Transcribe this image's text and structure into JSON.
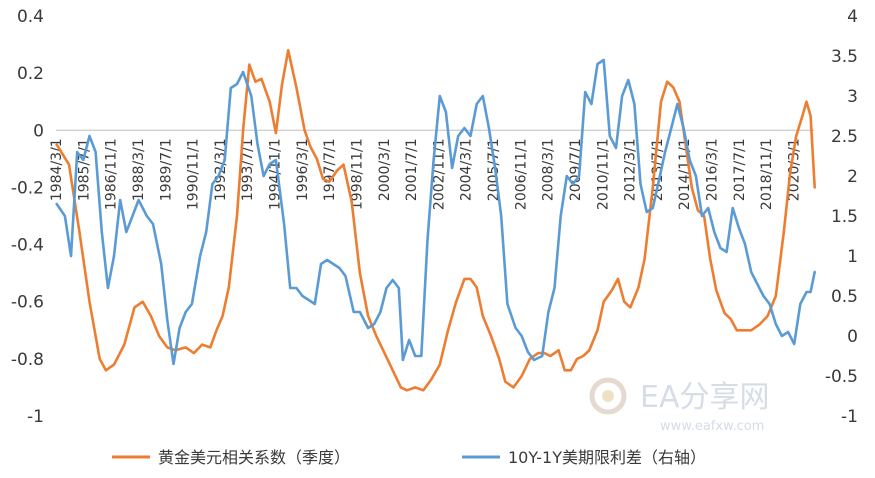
{
  "chart_data": {
    "type": "line",
    "title": "",
    "xlabel": "",
    "ylabel": "",
    "y_left": {
      "lim": [
        -1,
        0.4
      ],
      "ticks": [
        "0.4",
        "0.2",
        "0",
        "-0.2",
        "-0.4",
        "-0.6",
        "-0.8",
        "-1"
      ]
    },
    "y_right": {
      "lim": [
        -1,
        4
      ],
      "ticks": [
        "4",
        "3.5",
        "3",
        "2.5",
        "2",
        "1.5",
        "1",
        "0.5",
        "0",
        "-0.5",
        "-1"
      ]
    },
    "x_tick_labels": [
      "1984/3/1",
      "1985/7/1",
      "1986/11/1",
      "1988/3/1",
      "1989/7/1",
      "1990/11/1",
      "1992/3/1",
      "1993/7/1",
      "1994/11/1",
      "1996/3/1",
      "1997/7/1",
      "1998/11/1",
      "2000/3/1",
      "2001/7/1",
      "2002/11/1",
      "2004/3/1",
      "2005/7/1",
      "2006/11/1",
      "2008/3/1",
      "2009/7/1",
      "2010/11/1",
      "2012/3/1",
      "2013/7/1",
      "2014/11/1",
      "2016/3/1",
      "2017/7/1",
      "2018/11/1",
      "2020/3/1"
    ],
    "x_start": "1984/3/1",
    "x_end": "2021/3/1",
    "legend_position": "bottom",
    "series": [
      {
        "name": "黄金美元相关系数（季度）",
        "color": "#ed7d31",
        "axis": "left",
        "points": [
          [
            1984.2,
            -0.05
          ],
          [
            1984.8,
            -0.12
          ],
          [
            1985.3,
            -0.35
          ],
          [
            1985.8,
            -0.6
          ],
          [
            1986.3,
            -0.8
          ],
          [
            1986.6,
            -0.84
          ],
          [
            1987.0,
            -0.82
          ],
          [
            1987.5,
            -0.75
          ],
          [
            1988.0,
            -0.62
          ],
          [
            1988.4,
            -0.6
          ],
          [
            1988.8,
            -0.65
          ],
          [
            1989.2,
            -0.72
          ],
          [
            1989.6,
            -0.76
          ],
          [
            1990.0,
            -0.77
          ],
          [
            1990.5,
            -0.76
          ],
          [
            1990.9,
            -0.78
          ],
          [
            1991.3,
            -0.75
          ],
          [
            1991.7,
            -0.76
          ],
          [
            1992.0,
            -0.7
          ],
          [
            1992.3,
            -0.65
          ],
          [
            1992.6,
            -0.55
          ],
          [
            1993.0,
            -0.3
          ],
          [
            1993.3,
            0.0
          ],
          [
            1993.6,
            0.23
          ],
          [
            1993.9,
            0.17
          ],
          [
            1994.2,
            0.18
          ],
          [
            1994.6,
            0.1
          ],
          [
            1994.9,
            -0.01
          ],
          [
            1995.2,
            0.16
          ],
          [
            1995.5,
            0.28
          ],
          [
            1995.9,
            0.15
          ],
          [
            1996.3,
            0.0
          ],
          [
            1996.6,
            -0.06
          ],
          [
            1996.9,
            -0.1
          ],
          [
            1997.2,
            -0.17
          ],
          [
            1997.5,
            -0.18
          ],
          [
            1997.9,
            -0.14
          ],
          [
            1998.2,
            -0.12
          ],
          [
            1998.6,
            -0.25
          ],
          [
            1999.0,
            -0.5
          ],
          [
            1999.4,
            -0.65
          ],
          [
            1999.8,
            -0.72
          ],
          [
            2000.2,
            -0.78
          ],
          [
            2000.6,
            -0.84
          ],
          [
            2001.0,
            -0.9
          ],
          [
            2001.3,
            -0.91
          ],
          [
            2001.7,
            -0.9
          ],
          [
            2002.1,
            -0.91
          ],
          [
            2002.5,
            -0.87
          ],
          [
            2002.9,
            -0.82
          ],
          [
            2003.3,
            -0.7
          ],
          [
            2003.7,
            -0.6
          ],
          [
            2004.1,
            -0.52
          ],
          [
            2004.4,
            -0.52
          ],
          [
            2004.7,
            -0.55
          ],
          [
            2005.0,
            -0.65
          ],
          [
            2005.4,
            -0.72
          ],
          [
            2005.8,
            -0.8
          ],
          [
            2006.1,
            -0.88
          ],
          [
            2006.5,
            -0.9
          ],
          [
            2006.9,
            -0.86
          ],
          [
            2007.3,
            -0.8
          ],
          [
            2007.7,
            -0.78
          ],
          [
            2008.0,
            -0.78
          ],
          [
            2008.3,
            -0.79
          ],
          [
            2008.7,
            -0.77
          ],
          [
            2009.0,
            -0.84
          ],
          [
            2009.3,
            -0.84
          ],
          [
            2009.6,
            -0.8
          ],
          [
            2009.9,
            -0.79
          ],
          [
            2010.2,
            -0.77
          ],
          [
            2010.6,
            -0.7
          ],
          [
            2010.9,
            -0.6
          ],
          [
            2011.3,
            -0.56
          ],
          [
            2011.6,
            -0.52
          ],
          [
            2011.9,
            -0.6
          ],
          [
            2012.2,
            -0.62
          ],
          [
            2012.6,
            -0.55
          ],
          [
            2012.9,
            -0.45
          ],
          [
            2013.3,
            -0.2
          ],
          [
            2013.7,
            0.1
          ],
          [
            2014.0,
            0.17
          ],
          [
            2014.3,
            0.15
          ],
          [
            2014.6,
            0.1
          ],
          [
            2014.9,
            -0.05
          ],
          [
            2015.2,
            -0.2
          ],
          [
            2015.5,
            -0.28
          ],
          [
            2015.8,
            -0.3
          ],
          [
            2016.1,
            -0.45
          ],
          [
            2016.4,
            -0.56
          ],
          [
            2016.8,
            -0.64
          ],
          [
            2017.1,
            -0.66
          ],
          [
            2017.4,
            -0.7
          ],
          [
            2017.8,
            -0.7
          ],
          [
            2018.1,
            -0.7
          ],
          [
            2018.5,
            -0.68
          ],
          [
            2018.9,
            -0.65
          ],
          [
            2019.3,
            -0.58
          ],
          [
            2019.7,
            -0.35
          ],
          [
            2020.0,
            -0.15
          ],
          [
            2020.3,
            -0.02
          ],
          [
            2020.6,
            0.05
          ],
          [
            2020.8,
            0.1
          ],
          [
            2021.0,
            0.05
          ],
          [
            2021.2,
            -0.2
          ]
        ]
      },
      {
        "name": "10Y-1Y美期限利差（右轴）",
        "color": "#5b9bd5",
        "axis": "right",
        "points": [
          [
            1984.2,
            1.65
          ],
          [
            1984.6,
            1.5
          ],
          [
            1984.9,
            1.0
          ],
          [
            1985.2,
            2.3
          ],
          [
            1985.5,
            2.2
          ],
          [
            1985.8,
            2.5
          ],
          [
            1986.1,
            2.3
          ],
          [
            1986.4,
            1.3
          ],
          [
            1986.7,
            0.6
          ],
          [
            1987.0,
            1.0
          ],
          [
            1987.3,
            1.7
          ],
          [
            1987.6,
            1.3
          ],
          [
            1987.9,
            1.5
          ],
          [
            1988.2,
            1.7
          ],
          [
            1988.6,
            1.5
          ],
          [
            1988.9,
            1.4
          ],
          [
            1989.3,
            0.9
          ],
          [
            1989.6,
            0.2
          ],
          [
            1989.9,
            -0.35
          ],
          [
            1990.2,
            0.1
          ],
          [
            1990.5,
            0.3
          ],
          [
            1990.8,
            0.4
          ],
          [
            1991.2,
            1.0
          ],
          [
            1991.5,
            1.3
          ],
          [
            1991.8,
            1.9
          ],
          [
            1992.1,
            2.0
          ],
          [
            1992.4,
            2.2
          ],
          [
            1992.7,
            3.1
          ],
          [
            1993.0,
            3.15
          ],
          [
            1993.3,
            3.3
          ],
          [
            1993.7,
            3.0
          ],
          [
            1994.0,
            2.4
          ],
          [
            1994.3,
            2.0
          ],
          [
            1994.6,
            2.15
          ],
          [
            1994.9,
            2.2
          ],
          [
            1995.3,
            1.4
          ],
          [
            1995.6,
            0.6
          ],
          [
            1995.9,
            0.6
          ],
          [
            1996.2,
            0.5
          ],
          [
            1996.5,
            0.45
          ],
          [
            1996.8,
            0.4
          ],
          [
            1997.1,
            0.9
          ],
          [
            1997.4,
            0.95
          ],
          [
            1997.7,
            0.9
          ],
          [
            1998.0,
            0.85
          ],
          [
            1998.3,
            0.75
          ],
          [
            1998.7,
            0.3
          ],
          [
            1999.0,
            0.3
          ],
          [
            1999.4,
            0.1
          ],
          [
            1999.7,
            0.15
          ],
          [
            2000.0,
            0.3
          ],
          [
            2000.3,
            0.6
          ],
          [
            2000.6,
            0.7
          ],
          [
            2000.9,
            0.6
          ],
          [
            2001.1,
            -0.3
          ],
          [
            2001.4,
            -0.05
          ],
          [
            2001.7,
            -0.25
          ],
          [
            2002.0,
            -0.25
          ],
          [
            2002.3,
            1.2
          ],
          [
            2002.6,
            2.2
          ],
          [
            2002.9,
            3.0
          ],
          [
            2003.2,
            2.8
          ],
          [
            2003.5,
            2.1
          ],
          [
            2003.8,
            2.5
          ],
          [
            2004.1,
            2.6
          ],
          [
            2004.4,
            2.5
          ],
          [
            2004.7,
            2.9
          ],
          [
            2005.0,
            3.0
          ],
          [
            2005.3,
            2.6
          ],
          [
            2005.6,
            2.1
          ],
          [
            2005.9,
            1.5
          ],
          [
            2006.2,
            0.4
          ],
          [
            2006.6,
            0.1
          ],
          [
            2006.9,
            0.0
          ],
          [
            2007.2,
            -0.2
          ],
          [
            2007.5,
            -0.3
          ],
          [
            2007.9,
            -0.25
          ],
          [
            2008.2,
            0.3
          ],
          [
            2008.5,
            0.6
          ],
          [
            2008.8,
            1.5
          ],
          [
            2009.1,
            2.0
          ],
          [
            2009.4,
            1.9
          ],
          [
            2009.7,
            2.0
          ],
          [
            2010.0,
            3.05
          ],
          [
            2010.3,
            2.9
          ],
          [
            2010.6,
            3.4
          ],
          [
            2010.9,
            3.45
          ],
          [
            2011.2,
            2.5
          ],
          [
            2011.5,
            2.35
          ],
          [
            2011.8,
            3.0
          ],
          [
            2012.1,
            3.2
          ],
          [
            2012.4,
            2.9
          ],
          [
            2012.7,
            1.9
          ],
          [
            2013.0,
            1.55
          ],
          [
            2013.3,
            1.6
          ],
          [
            2013.6,
            1.95
          ],
          [
            2013.9,
            2.3
          ],
          [
            2014.2,
            2.6
          ],
          [
            2014.5,
            2.9
          ],
          [
            2014.8,
            2.6
          ],
          [
            2015.1,
            2.2
          ],
          [
            2015.4,
            2.0
          ],
          [
            2015.7,
            1.5
          ],
          [
            2016.0,
            1.6
          ],
          [
            2016.3,
            1.3
          ],
          [
            2016.6,
            1.1
          ],
          [
            2016.9,
            1.05
          ],
          [
            2017.2,
            1.6
          ],
          [
            2017.5,
            1.35
          ],
          [
            2017.8,
            1.15
          ],
          [
            2018.1,
            0.8
          ],
          [
            2018.4,
            0.65
          ],
          [
            2018.7,
            0.5
          ],
          [
            2019.0,
            0.4
          ],
          [
            2019.3,
            0.15
          ],
          [
            2019.6,
            0.0
          ],
          [
            2019.9,
            0.05
          ],
          [
            2020.2,
            -0.1
          ],
          [
            2020.5,
            0.4
          ],
          [
            2020.8,
            0.55
          ],
          [
            2021.0,
            0.55
          ],
          [
            2021.2,
            0.8
          ]
        ]
      }
    ]
  },
  "watermark": {
    "brand": "EA分享网",
    "url": "www.eafxw.com"
  }
}
